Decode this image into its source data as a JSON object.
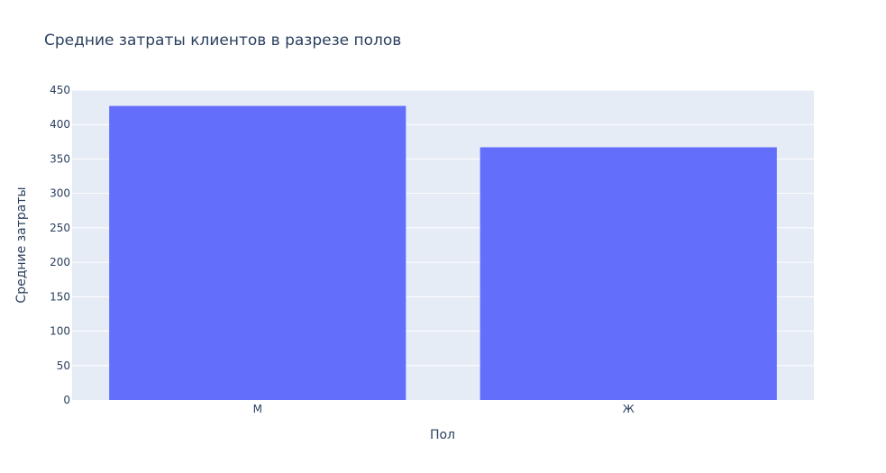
{
  "chart_data": {
    "type": "bar",
    "title": "Средние затраты клиентов в разрезе полов",
    "xlabel": "Пол",
    "ylabel": "Средние затраты",
    "categories": [
      "М",
      "Ж"
    ],
    "values": [
      427,
      367
    ],
    "ylim": [
      0,
      450
    ],
    "yticks": [
      0,
      50,
      100,
      150,
      200,
      250,
      300,
      350,
      400,
      450
    ],
    "grid": true,
    "legend": "none",
    "colors": {
      "bar": "#636efa",
      "plot_background": "#e5ecf6",
      "gridline": "#ffffff",
      "text": "#2a3f5f"
    }
  }
}
